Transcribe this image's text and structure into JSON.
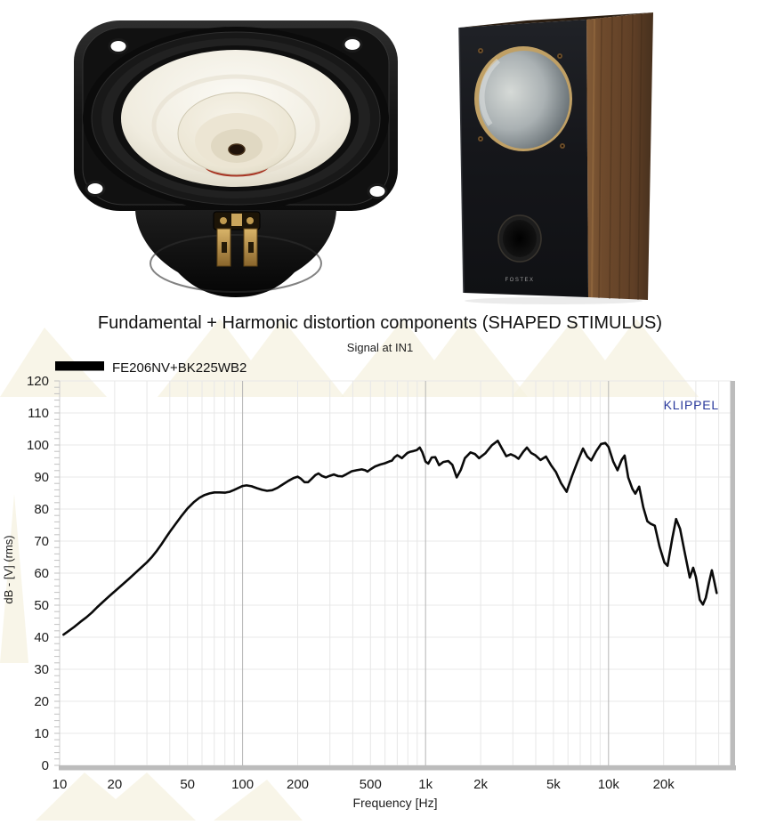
{
  "images": {
    "cabinet_logo": "FOSTEX"
  },
  "chart": {
    "title": "Fundamental + Harmonic distortion components (SHAPED STIMULUS)",
    "subtitle": "Signal at IN1",
    "brand": "KLIPPEL",
    "brand_color": "#28389b",
    "xlabel": "Frequency [Hz]",
    "ylabel": "dB - [V]  (rms)",
    "legend": [
      {
        "label": "FE206NV+BK225WB2",
        "color": "#000000"
      }
    ]
  },
  "chart_data": {
    "type": "line",
    "xscale": "log",
    "xlim": [
      10,
      47000
    ],
    "ylim": [
      0,
      120
    ],
    "y_tick_step": 10,
    "grid": true,
    "legend_position": "top-left",
    "x_ticks": [
      {
        "v": 10,
        "label": "10"
      },
      {
        "v": 20,
        "label": "20"
      },
      {
        "v": 50,
        "label": "50"
      },
      {
        "v": 100,
        "label": "100"
      },
      {
        "v": 200,
        "label": "200"
      },
      {
        "v": 500,
        "label": "500"
      },
      {
        "v": 1000,
        "label": "1k"
      },
      {
        "v": 2000,
        "label": "2k"
      },
      {
        "v": 5000,
        "label": "5k"
      },
      {
        "v": 10000,
        "label": "10k"
      },
      {
        "v": 20000,
        "label": "20k"
      }
    ],
    "title": "Fundamental + Harmonic distortion components (SHAPED STIMULUS)",
    "xlabel": "Frequency [Hz]",
    "ylabel": "dB - [V] (rms)",
    "series": [
      {
        "name": "FE206NV+BK225WB2",
        "color": "#0a0a0a",
        "points": [
          [
            10.5,
            40.8
          ],
          [
            11,
            41.6
          ],
          [
            12,
            43.2
          ],
          [
            13,
            44.8
          ],
          [
            14,
            46.2
          ],
          [
            15,
            47.7
          ],
          [
            16,
            49.3
          ],
          [
            17,
            50.7
          ],
          [
            18,
            52
          ],
          [
            19,
            53.2
          ],
          [
            20,
            54.3
          ],
          [
            22,
            56.4
          ],
          [
            24,
            58.3
          ],
          [
            26,
            60.1
          ],
          [
            28,
            61.8
          ],
          [
            30,
            63.4
          ],
          [
            32,
            65.1
          ],
          [
            34,
            67
          ],
          [
            36,
            69
          ],
          [
            38,
            71
          ],
          [
            40,
            72.9
          ],
          [
            43,
            75.3
          ],
          [
            46,
            77.6
          ],
          [
            50,
            80.2
          ],
          [
            54,
            82.1
          ],
          [
            58,
            83.5
          ],
          [
            62,
            84.4
          ],
          [
            66,
            84.9
          ],
          [
            70,
            85.2
          ],
          [
            75,
            85.2
          ],
          [
            80,
            85.1
          ],
          [
            85,
            85.4
          ],
          [
            90,
            86
          ],
          [
            95,
            86.6
          ],
          [
            100,
            87.2
          ],
          [
            105,
            87.4
          ],
          [
            112,
            87.1
          ],
          [
            120,
            86.5
          ],
          [
            128,
            86
          ],
          [
            136,
            85.7
          ],
          [
            145,
            85.9
          ],
          [
            155,
            86.6
          ],
          [
            165,
            87.6
          ],
          [
            178,
            88.8
          ],
          [
            190,
            89.7
          ],
          [
            200,
            90.1
          ],
          [
            208,
            89.5
          ],
          [
            218,
            88.4
          ],
          [
            228,
            88.4
          ],
          [
            238,
            89.4
          ],
          [
            250,
            90.6
          ],
          [
            260,
            91.1
          ],
          [
            272,
            90.3
          ],
          [
            285,
            89.9
          ],
          [
            300,
            90.4
          ],
          [
            315,
            90.8
          ],
          [
            332,
            90.3
          ],
          [
            350,
            90.2
          ],
          [
            370,
            90.9
          ],
          [
            395,
            91.8
          ],
          [
            420,
            92.1
          ],
          [
            448,
            92.4
          ],
          [
            468,
            92.1
          ],
          [
            482,
            91.7
          ],
          [
            500,
            92.4
          ],
          [
            530,
            93.3
          ],
          [
            565,
            93.9
          ],
          [
            600,
            94.3
          ],
          [
            635,
            94.9
          ],
          [
            655,
            95.1
          ],
          [
            675,
            96.1
          ],
          [
            700,
            96.8
          ],
          [
            720,
            96.4
          ],
          [
            742,
            95.9
          ],
          [
            765,
            96.6
          ],
          [
            795,
            97.5
          ],
          [
            825,
            97.9
          ],
          [
            860,
            98.1
          ],
          [
            895,
            98.4
          ],
          [
            930,
            99.2
          ],
          [
            960,
            97.7
          ],
          [
            1000,
            94.8
          ],
          [
            1035,
            94.2
          ],
          [
            1080,
            96.1
          ],
          [
            1130,
            96.2
          ],
          [
            1185,
            93.7
          ],
          [
            1250,
            94.7
          ],
          [
            1330,
            95
          ],
          [
            1400,
            93.8
          ],
          [
            1480,
            89.9
          ],
          [
            1560,
            92.3
          ],
          [
            1640,
            95.9
          ],
          [
            1760,
            97.7
          ],
          [
            1860,
            97.2
          ],
          [
            1960,
            95.9
          ],
          [
            2120,
            97.4
          ],
          [
            2300,
            99.9
          ],
          [
            2480,
            101.3
          ],
          [
            2620,
            98.8
          ],
          [
            2760,
            96.5
          ],
          [
            2920,
            97.1
          ],
          [
            3080,
            96.5
          ],
          [
            3220,
            95.7
          ],
          [
            3420,
            97.9
          ],
          [
            3580,
            99.2
          ],
          [
            3780,
            97.5
          ],
          [
            3980,
            96.8
          ],
          [
            4250,
            95.3
          ],
          [
            4550,
            96.4
          ],
          [
            4850,
            93.7
          ],
          [
            5150,
            91.6
          ],
          [
            5500,
            88.1
          ],
          [
            5900,
            85.4
          ],
          [
            6300,
            90.2
          ],
          [
            6750,
            94.6
          ],
          [
            7250,
            98.9
          ],
          [
            7650,
            96.4
          ],
          [
            8050,
            95.2
          ],
          [
            8550,
            98
          ],
          [
            9100,
            100.3
          ],
          [
            9600,
            100.6
          ],
          [
            10000,
            99.4
          ],
          [
            10600,
            94.9
          ],
          [
            11200,
            92.1
          ],
          [
            11800,
            95.4
          ],
          [
            12250,
            96.7
          ],
          [
            12800,
            89.9
          ],
          [
            13500,
            86.3
          ],
          [
            14000,
            84.8
          ],
          [
            14700,
            87
          ],
          [
            15500,
            80.5
          ],
          [
            16300,
            76.2
          ],
          [
            17000,
            75.4
          ],
          [
            17900,
            74.8
          ],
          [
            19000,
            68.3
          ],
          [
            20200,
            63.3
          ],
          [
            21000,
            62.3
          ],
          [
            22300,
            70.8
          ],
          [
            23400,
            76.9
          ],
          [
            24600,
            73.8
          ],
          [
            26000,
            66.9
          ],
          [
            27800,
            58.6
          ],
          [
            29000,
            61.7
          ],
          [
            30000,
            58.9
          ],
          [
            31500,
            51.7
          ],
          [
            32800,
            50.2
          ],
          [
            34000,
            52.3
          ],
          [
            35500,
            57.3
          ],
          [
            36700,
            60.9
          ],
          [
            37800,
            57.6
          ],
          [
            39000,
            53.8
          ]
        ]
      }
    ]
  }
}
